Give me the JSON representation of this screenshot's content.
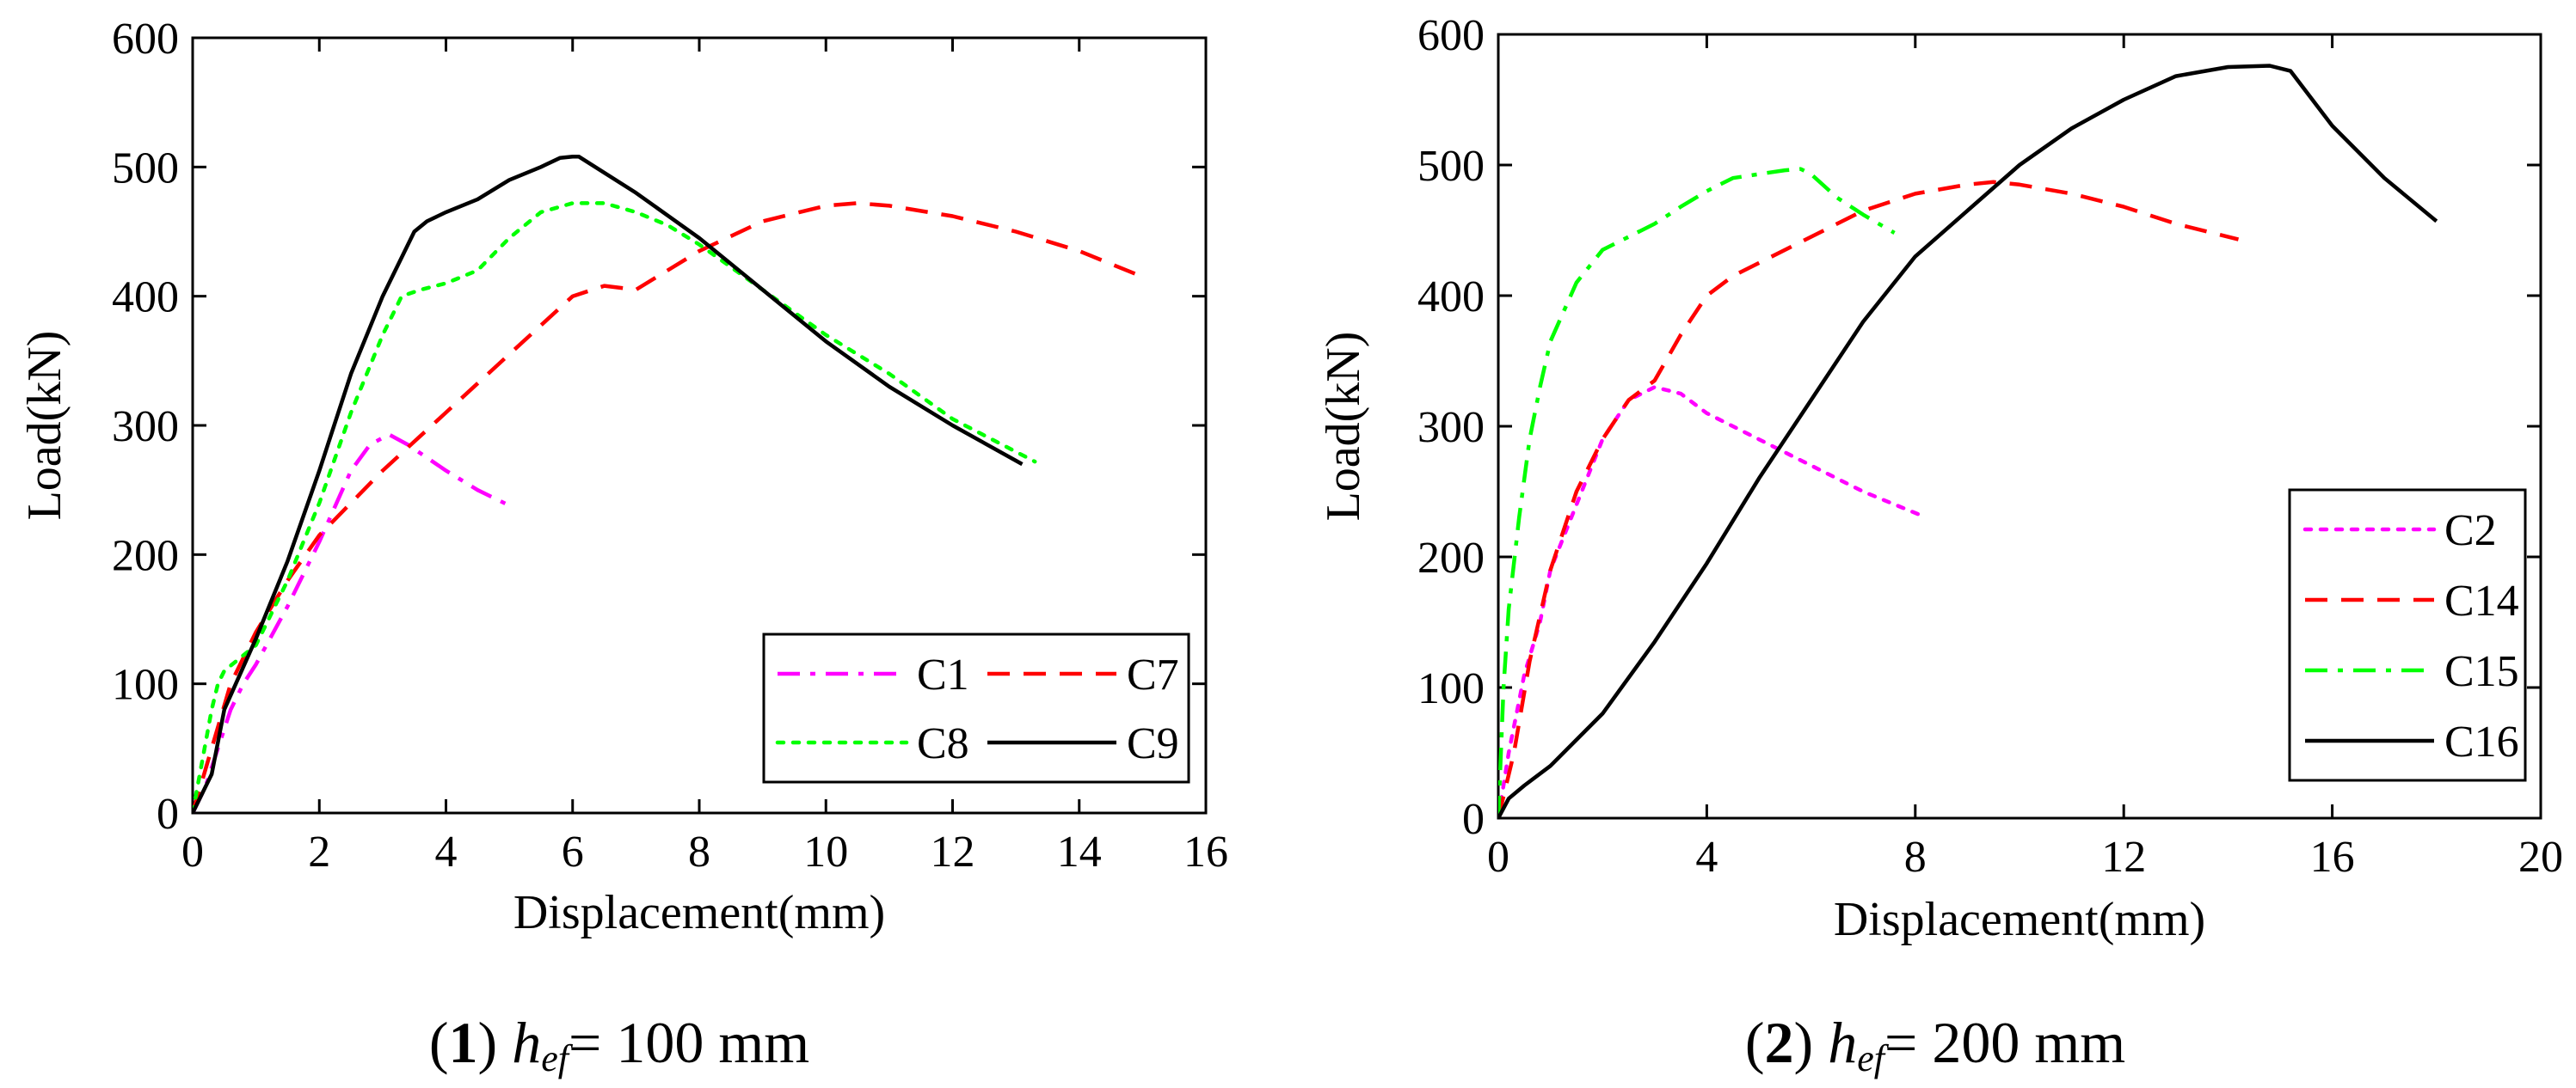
{
  "chart_data": [
    {
      "type": "line",
      "caption": {
        "num": "1",
        "var": "h",
        "sub": "ef",
        "rest": "= 100 mm"
      },
      "xlabel": "Displacement(mm)",
      "ylabel": "Load(kN)",
      "xlim": [
        0,
        16
      ],
      "ylim": [
        0,
        600
      ],
      "xticks": [
        0,
        2,
        4,
        6,
        8,
        10,
        12,
        14,
        16
      ],
      "yticks": [
        0,
        100,
        200,
        300,
        400,
        500,
        600
      ],
      "legend": "bottom-right, two columns",
      "series": [
        {
          "name": "C1",
          "color": "#ff00ff",
          "dash": "dashdot",
          "x": [
            0,
            0.2,
            0.4,
            0.6,
            0.8,
            1.0,
            1.5,
            2.0,
            2.5,
            2.8,
            3.1,
            3.4,
            4.0,
            4.5,
            5.0
          ],
          "y": [
            0,
            20,
            50,
            80,
            100,
            115,
            160,
            210,
            265,
            285,
            293,
            285,
            265,
            250,
            238
          ]
        },
        {
          "name": "C7",
          "color": "#ff0000",
          "dash": "dashed",
          "x": [
            0,
            0.3,
            0.6,
            1.0,
            1.5,
            2.0,
            3.0,
            4.0,
            5.0,
            6.0,
            6.5,
            7.0,
            8.0,
            9.0,
            10.0,
            10.5,
            11.0,
            12.0,
            13.0,
            14.0,
            15.0
          ],
          "y": [
            0,
            50,
            100,
            140,
            180,
            215,
            265,
            310,
            355,
            400,
            408,
            405,
            435,
            458,
            470,
            472,
            470,
            462,
            450,
            435,
            415
          ]
        },
        {
          "name": "C8",
          "color": "#00ff00",
          "dash": "dotted",
          "x": [
            0,
            0.3,
            0.4,
            0.5,
            0.7,
            1.0,
            1.5,
            2.0,
            2.5,
            3.0,
            3.3,
            3.6,
            4.0,
            4.5,
            5.0,
            5.5,
            6.0,
            6.5,
            7.0,
            7.5,
            8.0,
            9.0,
            10.0,
            11.0,
            12.0,
            13.3
          ],
          "y": [
            0,
            80,
            100,
            110,
            118,
            130,
            180,
            240,
            310,
            370,
            400,
            405,
            410,
            420,
            445,
            465,
            472,
            472,
            465,
            455,
            440,
            405,
            370,
            340,
            305,
            272
          ]
        },
        {
          "name": "C9",
          "color": "#000000",
          "dash": "solid",
          "x": [
            0,
            0.3,
            0.5,
            1.0,
            1.5,
            2.0,
            2.5,
            3.0,
            3.5,
            3.7,
            4.0,
            4.5,
            5.0,
            5.5,
            5.8,
            6.0,
            6.1,
            7.0,
            8.0,
            9.0,
            10.0,
            11.0,
            12.0,
            13.1
          ],
          "y": [
            0,
            30,
            80,
            135,
            195,
            265,
            340,
            400,
            450,
            458,
            465,
            475,
            490,
            500,
            507,
            508,
            508,
            480,
            445,
            405,
            365,
            330,
            300,
            270
          ]
        }
      ]
    },
    {
      "type": "line",
      "caption": {
        "num": "2",
        "var": "h",
        "sub": "ef",
        "rest": "= 200 mm"
      },
      "xlabel": "Displacement(mm)",
      "ylabel": "Load(kN)",
      "xlim": [
        0,
        20
      ],
      "ylim": [
        0,
        600
      ],
      "xticks": [
        0,
        4,
        8,
        12,
        16,
        20
      ],
      "yticks": [
        0,
        100,
        200,
        300,
        400,
        500,
        600
      ],
      "legend": "right, single column",
      "series": [
        {
          "name": "C2",
          "color": "#ff00ff",
          "dash": "dotted",
          "x": [
            0,
            0.2,
            0.5,
            0.8,
            1.0,
            1.5,
            2.0,
            2.5,
            3.0,
            3.5,
            4.0,
            5.0,
            6.0,
            7.0,
            8.1
          ],
          "y": [
            0,
            50,
            110,
            150,
            190,
            240,
            290,
            320,
            330,
            325,
            310,
            290,
            270,
            250,
            232
          ]
        },
        {
          "name": "C14",
          "color": "#ff0000",
          "dash": "dashed",
          "x": [
            0,
            0.3,
            0.6,
            1.0,
            1.5,
            2.0,
            2.5,
            3.0,
            3.5,
            4.0,
            4.5,
            5.0,
            6.0,
            7.0,
            8.0,
            9.0,
            9.5,
            10.0,
            11.0,
            12.0,
            13.0,
            14.2
          ],
          "y": [
            0,
            50,
            120,
            190,
            250,
            290,
            320,
            335,
            370,
            400,
            415,
            425,
            445,
            465,
            478,
            485,
            487,
            485,
            478,
            468,
            455,
            443
          ]
        },
        {
          "name": "C15",
          "color": "#00ff00",
          "dash": "dashdot",
          "x": [
            0,
            0.1,
            0.2,
            0.4,
            0.6,
            0.8,
            1.0,
            1.5,
            2.0,
            2.5,
            3.0,
            3.5,
            4.0,
            4.5,
            5.0,
            5.5,
            5.8,
            6.0,
            6.5,
            7.0,
            7.6
          ],
          "y": [
            0,
            100,
            160,
            230,
            290,
            330,
            365,
            410,
            435,
            445,
            455,
            468,
            480,
            490,
            493,
            496,
            497,
            493,
            475,
            462,
            448
          ]
        },
        {
          "name": "C16",
          "color": "#000000",
          "dash": "solid",
          "x": [
            0,
            0.2,
            0.5,
            1.0,
            2.0,
            3.0,
            4.0,
            5.0,
            6.0,
            7.0,
            8.0,
            9.0,
            10.0,
            11.0,
            12.0,
            13.0,
            14.0,
            14.8,
            15.2,
            16.0,
            17.0,
            18.0
          ],
          "y": [
            0,
            15,
            25,
            40,
            80,
            135,
            195,
            260,
            320,
            380,
            430,
            465,
            500,
            528,
            550,
            568,
            575,
            576,
            572,
            530,
            490,
            457
          ]
        }
      ]
    }
  ]
}
